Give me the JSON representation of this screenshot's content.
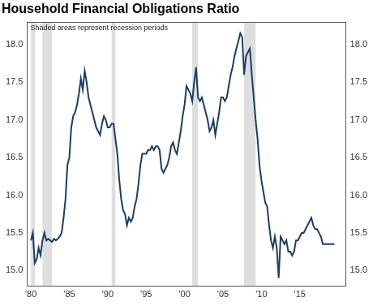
{
  "chart_data": {
    "type": "line",
    "title": "Household Financial Obligations Ratio",
    "subtitle": "Shaded areas represent recession periods",
    "color": "#1b3d63",
    "grid": false,
    "xlim": [
      1979.5,
      2021
    ],
    "xticks": [
      {
        "value": 1980,
        "label": "'80"
      },
      {
        "value": 1985,
        "label": "'85"
      },
      {
        "value": 1990,
        "label": "'90"
      },
      {
        "value": 1995,
        "label": "'95"
      },
      {
        "value": 2000,
        "label": "'00"
      },
      {
        "value": 2005,
        "label": "'05"
      },
      {
        "value": 2010,
        "label": "'10"
      },
      {
        "value": 2015,
        "label": "'15"
      }
    ],
    "ylim": [
      14.8,
      18.3
    ],
    "yticks": [
      {
        "value": 15,
        "label": "15.0"
      },
      15.5,
      {
        "value": 16,
        "label": "16.0"
      },
      16.5,
      {
        "value": 17,
        "label": "17.0"
      },
      17.5,
      {
        "value": 18,
        "label": "18.0"
      }
    ],
    "recessions": [
      {
        "start": 1980.0,
        "end": 1980.5
      },
      {
        "start": 1981.5,
        "end": 1982.75
      },
      {
        "start": 1990.5,
        "end": 1991.0
      },
      {
        "start": 2001.0,
        "end": 2001.75
      },
      {
        "start": 2007.75,
        "end": 2009.25
      }
    ],
    "x": [
      1980,
      1980.25,
      1980.5,
      1980.75,
      1981,
      1981.25,
      1981.5,
      1981.75,
      1982,
      1982.25,
      1982.5,
      1982.75,
      1983,
      1983.25,
      1983.5,
      1983.75,
      1984,
      1984.25,
      1984.5,
      1984.75,
      1985,
      1985.25,
      1985.5,
      1985.75,
      1986,
      1986.25,
      1986.5,
      1986.75,
      1987,
      1987.25,
      1987.5,
      1987.75,
      1988,
      1988.25,
      1988.5,
      1988.75,
      1989,
      1989.25,
      1989.5,
      1989.75,
      1990,
      1990.25,
      1990.5,
      1990.75,
      1991,
      1991.25,
      1991.5,
      1991.75,
      1992,
      1992.25,
      1992.5,
      1992.75,
      1993,
      1993.25,
      1993.5,
      1993.75,
      1994,
      1994.25,
      1994.5,
      1994.75,
      1995,
      1995.25,
      1995.5,
      1995.75,
      1996,
      1996.25,
      1996.5,
      1996.75,
      1997,
      1997.25,
      1997.5,
      1997.75,
      1998,
      1998.25,
      1998.5,
      1998.75,
      1999,
      1999.25,
      1999.5,
      1999.75,
      2000,
      2000.25,
      2000.5,
      2000.75,
      2001,
      2001.25,
      2001.5,
      2001.75,
      2002,
      2002.25,
      2002.5,
      2002.75,
      2003,
      2003.25,
      2003.5,
      2003.75,
      2004,
      2004.25,
      2004.5,
      2004.75,
      2005,
      2005.25,
      2005.5,
      2005.75,
      2006,
      2006.25,
      2006.5,
      2006.75,
      2007,
      2007.25,
      2007.5,
      2007.75,
      2008,
      2008.25,
      2008.5,
      2008.75,
      2009,
      2009.25,
      2009.5,
      2009.75,
      2010,
      2010.25,
      2010.5,
      2010.75,
      2011,
      2011.25,
      2011.5,
      2011.75,
      2012,
      2012.25,
      2012.5,
      2012.75,
      2013,
      2013.25,
      2013.5,
      2013.75,
      2014,
      2014.25,
      2014.5,
      2014.75,
      2015,
      2015.25,
      2015.5,
      2015.75,
      2016,
      2016.25,
      2016.5,
      2016.75,
      2017,
      2017.25,
      2017.5,
      2017.75,
      2018,
      2018.25,
      2018.5,
      2018.75,
      2019,
      2019.25,
      2019.5
    ],
    "values": [
      15.4,
      15.5,
      15.1,
      15.15,
      15.3,
      15.2,
      15.4,
      15.5,
      15.4,
      15.42,
      15.4,
      15.38,
      15.42,
      15.4,
      15.42,
      15.45,
      15.5,
      15.7,
      15.95,
      16.4,
      16.5,
      16.9,
      17.05,
      17.1,
      17.2,
      17.35,
      17.55,
      17.4,
      17.65,
      17.5,
      17.3,
      17.2,
      17.1,
      17.0,
      16.9,
      16.85,
      16.8,
      16.95,
      17.05,
      17.0,
      16.9,
      16.9,
      16.95,
      16.95,
      16.75,
      16.55,
      16.2,
      15.95,
      15.8,
      15.75,
      15.6,
      15.7,
      15.65,
      15.7,
      15.85,
      15.95,
      16.15,
      16.4,
      16.55,
      16.55,
      16.55,
      16.6,
      16.6,
      16.65,
      16.6,
      16.65,
      16.65,
      16.6,
      16.35,
      16.3,
      16.35,
      16.4,
      16.5,
      16.65,
      16.7,
      16.6,
      16.55,
      16.7,
      16.85,
      17.05,
      17.2,
      17.45,
      17.4,
      17.35,
      17.25,
      17.5,
      17.7,
      17.3,
      17.25,
      17.3,
      17.2,
      17.1,
      17.0,
      16.85,
      16.9,
      17.0,
      16.8,
      16.95,
      17.1,
      17.3,
      17.3,
      17.25,
      17.3,
      17.45,
      17.6,
      17.7,
      17.85,
      17.95,
      18.05,
      18.15,
      18.1,
      17.6,
      17.85,
      17.9,
      17.95,
      17.6,
      17.3,
      17.0,
      16.75,
      16.4,
      16.2,
      16.05,
      15.9,
      15.85,
      15.6,
      15.4,
      15.3,
      15.45,
      15.3,
      14.9,
      15.45,
      15.4,
      15.35,
      15.4,
      15.25,
      15.25,
      15.2,
      15.25,
      15.4,
      15.4,
      15.45,
      15.5,
      15.5,
      15.55,
      15.6,
      15.65,
      15.7,
      15.6,
      15.55,
      15.55,
      15.5,
      15.45,
      15.35,
      15.35,
      15.35,
      15.35,
      15.35,
      15.35,
      15.35
    ]
  }
}
